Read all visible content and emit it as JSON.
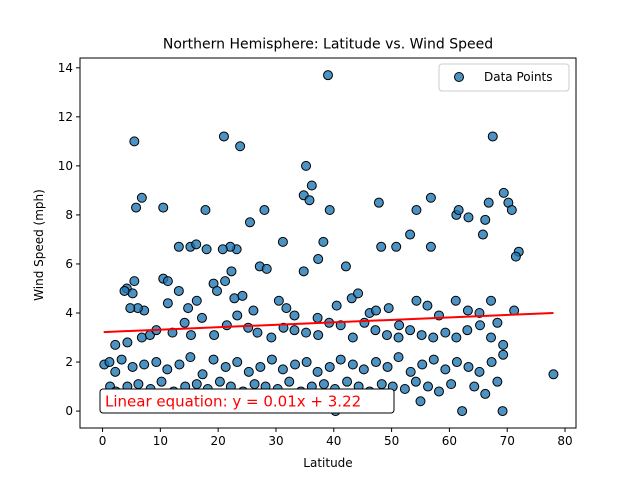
{
  "colors": {
    "point_fill": "#1f77b4",
    "point_edge": "#000000",
    "regression_line": "#ff0000",
    "annotation_text": "#ff0000"
  },
  "chart_data": {
    "type": "scatter",
    "title": "Northern Hemisphere: Latitude vs. Wind Speed",
    "xlabel": "Latitude",
    "ylabel": "Wind Speed (mph)",
    "xlim": [
      -3.9,
      81.9
    ],
    "ylim": [
      -0.69,
      14.4
    ],
    "xticks": [
      0,
      10,
      20,
      30,
      40,
      50,
      60,
      70,
      80
    ],
    "yticks": [
      0,
      2,
      4,
      6,
      8,
      10,
      12,
      14
    ],
    "grid": false,
    "legend": {
      "position": "top-right",
      "entries": [
        "Data Points"
      ]
    },
    "regression": {
      "slope": 0.01,
      "intercept": 3.22,
      "x_range": [
        0.2,
        78.0
      ]
    },
    "annotation": "Linear equation: y = 0.01x + 3.22",
    "series": [
      {
        "name": "Data Points",
        "points": [
          [
            5.5,
            11.0
          ],
          [
            39,
            13.7
          ],
          [
            21,
            11.2
          ],
          [
            23.8,
            10.8
          ],
          [
            67.5,
            11.2
          ],
          [
            35.2,
            10.0
          ],
          [
            5.8,
            8.3
          ],
          [
            6.8,
            8.7
          ],
          [
            10.5,
            8.3
          ],
          [
            17.8,
            8.2
          ],
          [
            25.5,
            7.7
          ],
          [
            28,
            8.2
          ],
          [
            34.8,
            8.8
          ],
          [
            35.8,
            8.6
          ],
          [
            36.2,
            9.2
          ],
          [
            39.3,
            8.2
          ],
          [
            47.8,
            8.5
          ],
          [
            54.3,
            8.2
          ],
          [
            56.8,
            8.7
          ],
          [
            61.2,
            8.0
          ],
          [
            61.6,
            8.2
          ],
          [
            63.3,
            7.9
          ],
          [
            66.8,
            8.5
          ],
          [
            69.4,
            8.9
          ],
          [
            70.2,
            8.5
          ],
          [
            70.8,
            8.2
          ],
          [
            66.2,
            7.8
          ],
          [
            65.8,
            7.2
          ],
          [
            53.2,
            7.2
          ],
          [
            38.2,
            6.9
          ],
          [
            31.2,
            6.9
          ],
          [
            23.2,
            6.6
          ],
          [
            22.1,
            6.7
          ],
          [
            20.8,
            6.6
          ],
          [
            18,
            6.6
          ],
          [
            15.2,
            6.7
          ],
          [
            13.2,
            6.7
          ],
          [
            16.2,
            6.8
          ],
          [
            72.0,
            6.5
          ],
          [
            71.5,
            6.3
          ],
          [
            56.8,
            6.7
          ],
          [
            48.2,
            6.7
          ],
          [
            50.8,
            6.7
          ],
          [
            42.1,
            5.9
          ],
          [
            37.3,
            6.2
          ],
          [
            34.8,
            5.7
          ],
          [
            27.2,
            5.9
          ],
          [
            28.4,
            5.8
          ],
          [
            22.3,
            5.7
          ],
          [
            19.2,
            5.2
          ],
          [
            19.8,
            4.9
          ],
          [
            21.2,
            5.3
          ],
          [
            5.5,
            5.3
          ],
          [
            4.2,
            5.0
          ],
          [
            10.5,
            5.4
          ],
          [
            11.3,
            5.3
          ],
          [
            5.2,
            4.8
          ],
          [
            3.8,
            4.9
          ],
          [
            13.2,
            4.9
          ],
          [
            11.3,
            4.4
          ],
          [
            7.2,
            4.1
          ],
          [
            6.1,
            4.2
          ],
          [
            4.8,
            4.2
          ],
          [
            14.8,
            4.2
          ],
          [
            16.3,
            4.5
          ],
          [
            22.8,
            4.6
          ],
          [
            24.2,
            4.7
          ],
          [
            26.1,
            4.1
          ],
          [
            30.5,
            4.5
          ],
          [
            31.8,
            4.2
          ],
          [
            33.2,
            3.9
          ],
          [
            37.2,
            3.8
          ],
          [
            40.5,
            4.3
          ],
          [
            43.1,
            4.6
          ],
          [
            44.2,
            4.8
          ],
          [
            46.2,
            4.0
          ],
          [
            47.3,
            4.1
          ],
          [
            49.5,
            4.2
          ],
          [
            51.3,
            3.5
          ],
          [
            54.3,
            4.5
          ],
          [
            56.2,
            4.3
          ],
          [
            58.2,
            3.9
          ],
          [
            61.1,
            4.5
          ],
          [
            63.2,
            4.1
          ],
          [
            65.2,
            4.0
          ],
          [
            67.2,
            4.5
          ],
          [
            68.3,
            3.6
          ],
          [
            71.2,
            4.1
          ],
          [
            2.2,
            2.7
          ],
          [
            4.3,
            2.8
          ],
          [
            6.8,
            3.0
          ],
          [
            8.2,
            3.1
          ],
          [
            9.3,
            3.3
          ],
          [
            12.1,
            3.2
          ],
          [
            14.2,
            3.6
          ],
          [
            15.3,
            3.1
          ],
          [
            17.2,
            3.8
          ],
          [
            19.3,
            3.1
          ],
          [
            21.5,
            3.5
          ],
          [
            23.3,
            3.9
          ],
          [
            25.2,
            3.4
          ],
          [
            26.8,
            3.2
          ],
          [
            29.2,
            3.0
          ],
          [
            31.3,
            3.4
          ],
          [
            33.2,
            3.3
          ],
          [
            35.2,
            3.2
          ],
          [
            37.3,
            3.1
          ],
          [
            39.2,
            3.6
          ],
          [
            41.2,
            3.5
          ],
          [
            43.3,
            3.0
          ],
          [
            45.3,
            3.6
          ],
          [
            47.2,
            3.3
          ],
          [
            49.2,
            3.1
          ],
          [
            51.2,
            3.0
          ],
          [
            53.2,
            3.3
          ],
          [
            55.2,
            3.1
          ],
          [
            57.2,
            3.0
          ],
          [
            59.3,
            3.2
          ],
          [
            61.2,
            3.0
          ],
          [
            63.1,
            3.3
          ],
          [
            65.3,
            3.5
          ],
          [
            67.2,
            3.0
          ],
          [
            69.3,
            2.7
          ],
          [
            0.3,
            1.9
          ],
          [
            1.2,
            2.0
          ],
          [
            2.2,
            1.6
          ],
          [
            3.3,
            2.1
          ],
          [
            5.2,
            1.8
          ],
          [
            7.2,
            1.9
          ],
          [
            9.3,
            2.0
          ],
          [
            11.2,
            1.7
          ],
          [
            13.3,
            1.9
          ],
          [
            15.2,
            2.2
          ],
          [
            17.3,
            1.5
          ],
          [
            19.2,
            2.1
          ],
          [
            21.3,
            1.8
          ],
          [
            23.3,
            2.0
          ],
          [
            25.3,
            1.6
          ],
          [
            27.3,
            1.8
          ],
          [
            29.3,
            2.1
          ],
          [
            31.2,
            1.7
          ],
          [
            33.3,
            1.9
          ],
          [
            35.3,
            2.0
          ],
          [
            37.2,
            1.6
          ],
          [
            39.3,
            1.8
          ],
          [
            41.2,
            2.1
          ],
          [
            43.3,
            1.9
          ],
          [
            45.2,
            1.7
          ],
          [
            47.3,
            2.0
          ],
          [
            49.3,
            1.8
          ],
          [
            51.2,
            2.2
          ],
          [
            53.3,
            1.6
          ],
          [
            55.3,
            1.9
          ],
          [
            57.3,
            2.1
          ],
          [
            59.3,
            1.7
          ],
          [
            61.3,
            2.0
          ],
          [
            63.3,
            1.8
          ],
          [
            65.2,
            1.6
          ],
          [
            67.3,
            2.0
          ],
          [
            69.3,
            2.3
          ],
          [
            78.0,
            1.5
          ],
          [
            1.3,
            1.0
          ],
          [
            2.3,
            0.8
          ],
          [
            4.3,
            1.0
          ],
          [
            6.2,
            1.1
          ],
          [
            8.3,
            0.9
          ],
          [
            10.2,
            1.2
          ],
          [
            12.3,
            0.8
          ],
          [
            14.3,
            1.0
          ],
          [
            16.3,
            1.1
          ],
          [
            18.2,
            0.9
          ],
          [
            20.3,
            1.2
          ],
          [
            22.2,
            1.0
          ],
          [
            24.3,
            0.8
          ],
          [
            26.3,
            1.1
          ],
          [
            28.2,
            1.0
          ],
          [
            30.3,
            0.9
          ],
          [
            32.3,
            1.2
          ],
          [
            34.3,
            0.8
          ],
          [
            36.2,
            1.0
          ],
          [
            38.3,
            1.1
          ],
          [
            40.2,
            0.9
          ],
          [
            42.3,
            1.2
          ],
          [
            44.3,
            1.0
          ],
          [
            46.2,
            0.8
          ],
          [
            48.3,
            1.1
          ],
          [
            50.2,
            1.0
          ],
          [
            52.3,
            0.9
          ],
          [
            54.2,
            1.2
          ],
          [
            56.3,
            1.0
          ],
          [
            58.2,
            0.8
          ],
          [
            60.3,
            1.1
          ],
          [
            62.2,
            0.0
          ],
          [
            64.3,
            1.0
          ],
          [
            66.2,
            0.7
          ],
          [
            68.3,
            1.2
          ],
          [
            69.2,
            0.0
          ],
          [
            40.3,
            0.0
          ],
          [
            1.0,
            0.5
          ],
          [
            36.5,
            0.5
          ],
          [
            28.5,
            0.3
          ],
          [
            55.0,
            0.4
          ]
        ]
      }
    ]
  }
}
